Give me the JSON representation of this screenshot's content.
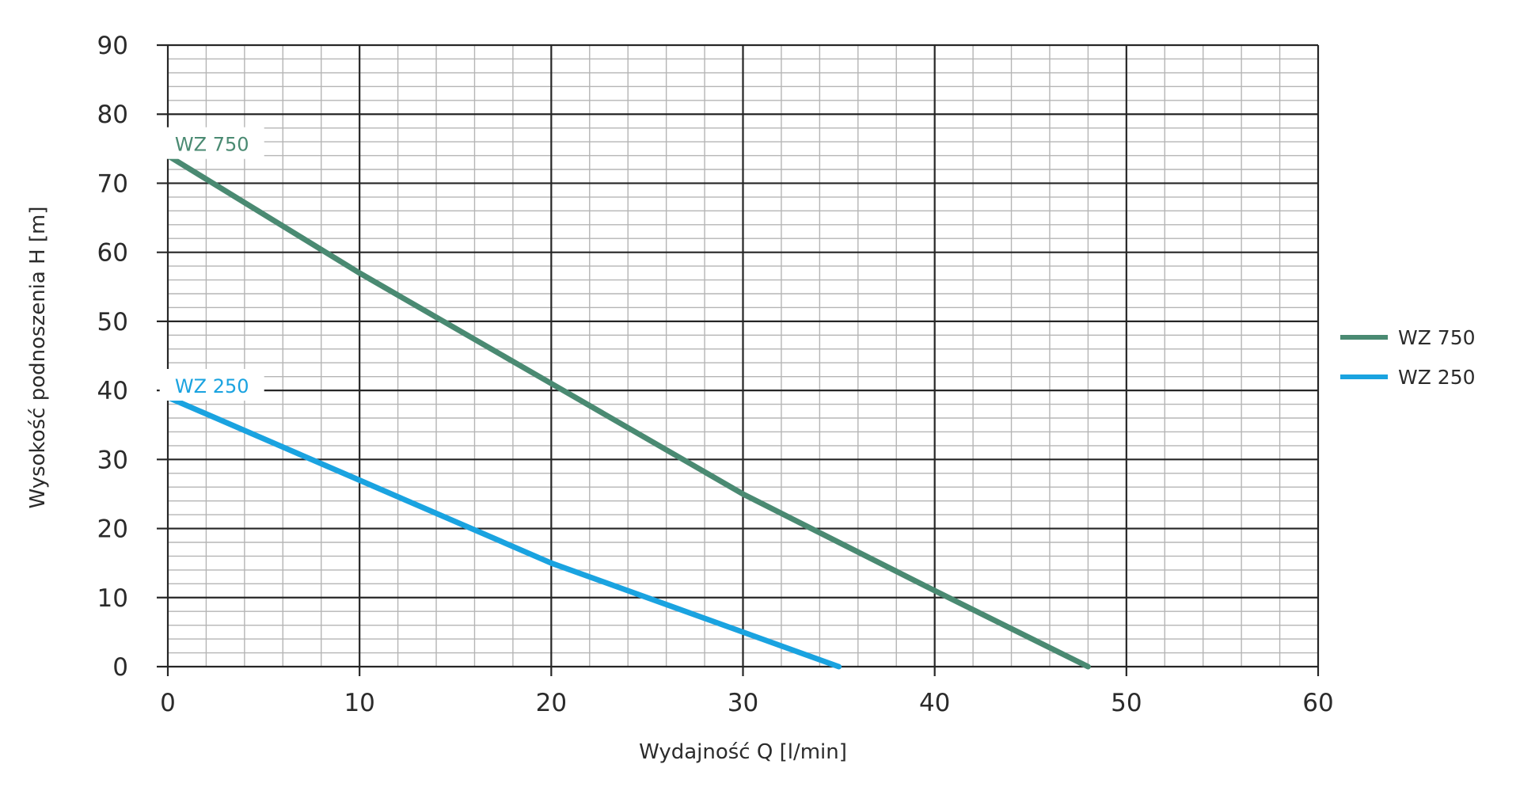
{
  "chart_data": {
    "type": "line",
    "xlabel": "Wydajność Q [l/min]",
    "ylabel": "Wysokość podnoszenia H [m]",
    "xlim": [
      0,
      60
    ],
    "ylim": [
      0,
      90
    ],
    "x_ticks": [
      "0",
      "10",
      "20",
      "30",
      "40",
      "50",
      "60"
    ],
    "y_ticks": [
      "0",
      "10",
      "20",
      "30",
      "40",
      "50",
      "60",
      "70",
      "80",
      "90"
    ],
    "grid": true,
    "legend_position": "right",
    "series": [
      {
        "name": "WZ 750",
        "color": "#4a8a72",
        "label": "WZ 750",
        "x": [
          0,
          10,
          20,
          30,
          40,
          48
        ],
        "y": [
          74,
          57,
          41,
          25,
          11,
          0
        ]
      },
      {
        "name": "WZ 250",
        "color": "#1aa3e0",
        "label": "WZ 250",
        "x": [
          0,
          10,
          20,
          30,
          35
        ],
        "y": [
          39,
          27,
          15,
          5,
          0
        ]
      }
    ]
  }
}
